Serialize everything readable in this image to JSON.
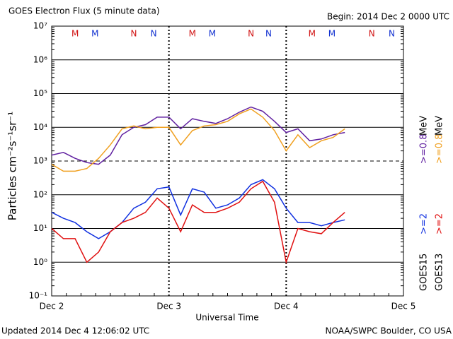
{
  "chart_data": {
    "type": "line",
    "title": "GOES Electron Flux (5 minute data)",
    "subtitle": "Begin: 2014 Dec 2 0000 UTC",
    "xlabel": "Universal Time",
    "ylabel": "Particles cm⁻²s⁻¹sr⁻¹",
    "footer_left": "Updated 2014 Dec  4 12:06:02 UTC",
    "footer_right": "NOAA/SWPC Boulder, CO USA",
    "log_y": true,
    "grid": true,
    "threshold": 1000,
    "xlim": [
      0,
      3
    ],
    "xticks": [
      {
        "value": 0,
        "label": "Dec 2"
      },
      {
        "value": 1,
        "label": "Dec 3"
      },
      {
        "value": 2,
        "label": "Dec 4"
      },
      {
        "value": 3,
        "label": "Dec 5"
      }
    ],
    "ylim": [
      0.1,
      10000000
    ],
    "yticks": [
      {
        "value": 0.1,
        "label": "10⁻¹"
      },
      {
        "value": 1,
        "label": "10⁰"
      },
      {
        "value": 10,
        "label": "10¹"
      },
      {
        "value": 100,
        "label": "10²"
      },
      {
        "value": 1000,
        "label": "10³"
      },
      {
        "value": 10000,
        "label": "10⁴"
      },
      {
        "value": 100000,
        "label": "10⁵"
      },
      {
        "value": 1000000,
        "label": "10⁶"
      },
      {
        "value": 10000000,
        "label": "10⁷"
      }
    ],
    "markers": [
      {
        "label": "M",
        "x": 0.2,
        "color": "#d01010"
      },
      {
        "label": "M",
        "x": 0.37,
        "color": "#1030d0"
      },
      {
        "label": "N",
        "x": 0.7,
        "color": "#d01010"
      },
      {
        "label": "N",
        "x": 0.87,
        "color": "#1030d0"
      },
      {
        "label": "M",
        "x": 1.2,
        "color": "#d01010"
      },
      {
        "label": "M",
        "x": 1.37,
        "color": "#1030d0"
      },
      {
        "label": "N",
        "x": 1.7,
        "color": "#d01010"
      },
      {
        "label": "N",
        "x": 1.85,
        "color": "#1030d0"
      },
      {
        "label": "M",
        "x": 2.22,
        "color": "#d01010"
      },
      {
        "label": "M",
        "x": 2.39,
        "color": "#1030d0"
      },
      {
        "label": "N",
        "x": 2.73,
        "color": "#d01010"
      },
      {
        "label": "N",
        "x": 2.9,
        "color": "#1030d0"
      }
    ],
    "legend_groups": [
      {
        "satellite": "GOES15",
        "unit": "MeV"
      },
      {
        "satellite": "GOES13",
        "unit": "MeV"
      }
    ],
    "x": [
      0,
      0.1,
      0.2,
      0.3,
      0.4,
      0.5,
      0.6,
      0.7,
      0.8,
      0.9,
      1.0,
      1.1,
      1.2,
      1.3,
      1.4,
      1.5,
      1.6,
      1.7,
      1.8,
      1.9,
      2.0,
      2.1,
      2.2,
      2.3,
      2.4,
      2.5
    ],
    "series": [
      {
        "name": ">=0.8",
        "group": 0,
        "color": "#6020a0",
        "values": [
          1500,
          1800,
          1200,
          900,
          800,
          1500,
          6000,
          10000,
          12000,
          20000,
          20000,
          9000,
          18000,
          15000,
          13000,
          18000,
          28000,
          40000,
          30000,
          15000,
          7000,
          9000,
          4000,
          4500,
          6000,
          7000
        ]
      },
      {
        "name": ">=0.8",
        "group": 1,
        "color": "#f0a020",
        "values": [
          800,
          500,
          500,
          600,
          1200,
          3000,
          9000,
          11000,
          9000,
          10000,
          10000,
          3000,
          8000,
          11000,
          12000,
          15000,
          25000,
          35000,
          20000,
          8000,
          2000,
          6000,
          2500,
          4000,
          5000,
          9000
        ]
      },
      {
        "name": ">=2",
        "group": 0,
        "color": "#1030e0",
        "values": [
          30,
          20,
          15,
          8,
          5,
          8,
          15,
          40,
          60,
          150,
          170,
          25,
          150,
          120,
          40,
          50,
          80,
          200,
          280,
          150,
          40,
          15,
          15,
          12,
          15,
          18
        ]
      },
      {
        "name": ">=2",
        "group": 1,
        "color": "#e01010",
        "values": [
          10,
          5,
          5,
          1,
          2,
          8,
          15,
          20,
          30,
          80,
          40,
          8,
          50,
          30,
          30,
          40,
          60,
          150,
          250,
          60,
          1,
          10,
          8,
          7,
          15,
          30
        ]
      }
    ]
  }
}
